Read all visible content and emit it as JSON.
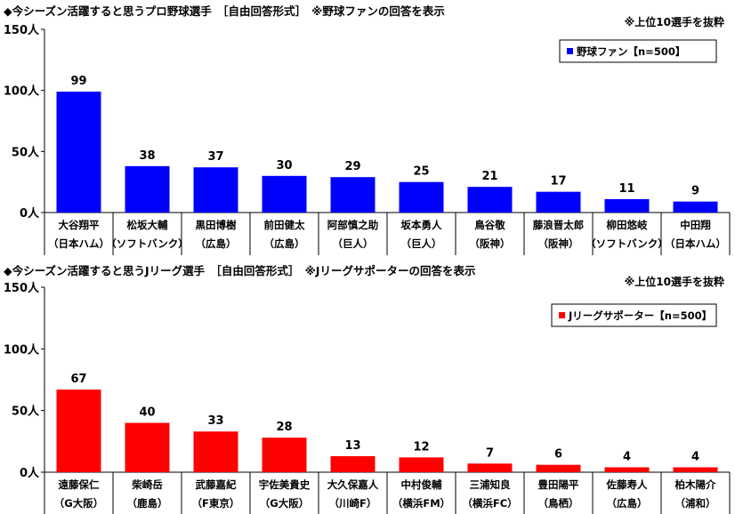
{
  "charts_meta": {
    "baseball": {
      "title": "◆今シーズン活躍すると思うプロ野球選手　［自由回答形式］　※野球ファンの回答を表示",
      "note": "※上位10選手を抜粋"
    },
    "jleague": {
      "title": "◆今シーズン活躍すると思うJリーグ選手　［自由回答形式］　※Jリーグサポーターの回答を表示",
      "note": "※上位10選手を抜粋"
    }
  },
  "chart_data": [
    {
      "type": "bar",
      "title": "◆今シーズン活躍すると思うプロ野球選手　［自由回答形式］　※野球ファンの回答を表示",
      "ylabel": "",
      "ylim": [
        0,
        150
      ],
      "yticks": [
        "0人",
        "50人",
        "100人",
        "150人"
      ],
      "legend_position": "top-right",
      "grid": false,
      "color": "#0000ff",
      "categories": [
        "大谷翔平",
        "松坂大輔",
        "黒田博樹",
        "前田健太",
        "阿部慎之助",
        "坂本勇人",
        "鳥谷敬",
        "藤浪晋太郎",
        "柳田悠岐",
        "中田翔"
      ],
      "subcategories": [
        "（日本ハム）",
        "（ソフトバンク）",
        "（広島）",
        "（広島）",
        "（巨人）",
        "（巨人）",
        "（阪神）",
        "（阪神）",
        "（ソフトバンク）",
        "（日本ハム）"
      ],
      "series": [
        {
          "name": "野球ファン【n=500】",
          "values": [
            99,
            38,
            37,
            30,
            29,
            25,
            21,
            17,
            11,
            9
          ]
        }
      ]
    },
    {
      "type": "bar",
      "title": "◆今シーズン活躍すると思うJリーグ選手　［自由回答形式］　※Jリーグサポーターの回答を表示",
      "ylabel": "",
      "ylim": [
        0,
        150
      ],
      "yticks": [
        "0人",
        "50人",
        "100人",
        "150人"
      ],
      "legend_position": "top-right",
      "grid": false,
      "color": "#ff0000",
      "categories": [
        "遠藤保仁",
        "柴崎岳",
        "武藤嘉紀",
        "宇佐美貴史",
        "大久保嘉人",
        "中村俊輔",
        "三浦知良",
        "豊田陽平",
        "佐藤寿人",
        "柏木陽介"
      ],
      "subcategories": [
        "（G大阪）",
        "（鹿島）",
        "（F東京）",
        "（G大阪）",
        "（川崎F）",
        "（横浜FM）",
        "（横浜FC）",
        "（鳥栖）",
        "（広島）",
        "（浦和）"
      ],
      "series": [
        {
          "name": "Jリーグサポーター【n=500】",
          "values": [
            67,
            40,
            33,
            28,
            13,
            12,
            7,
            6,
            4,
            4
          ]
        }
      ]
    }
  ]
}
